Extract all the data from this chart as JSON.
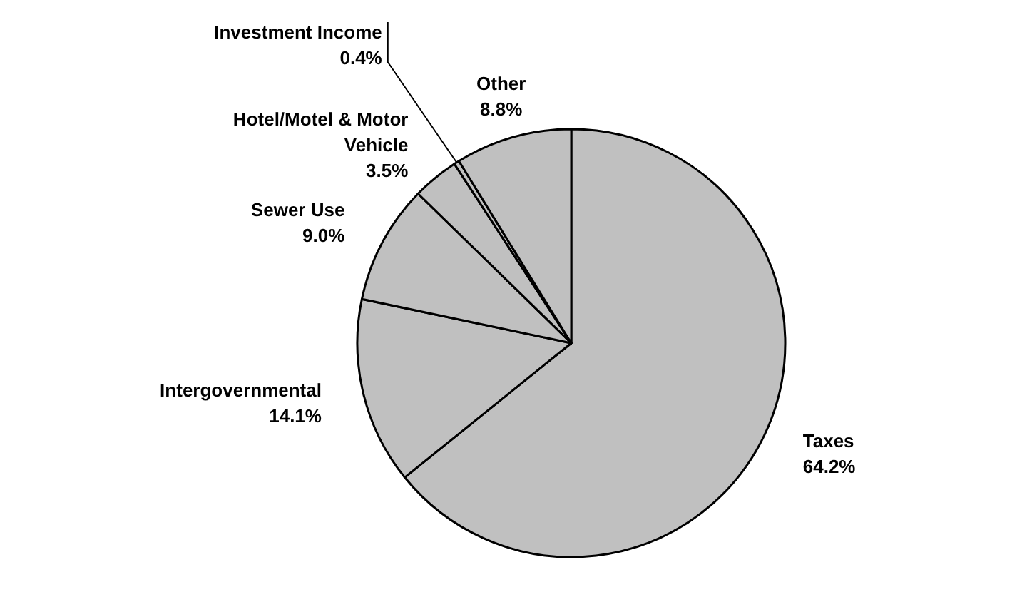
{
  "chart_data": {
    "type": "pie",
    "categories": [
      "Taxes",
      "Intergovernmental",
      "Sewer Use",
      "Hotel/Motel & Motor Vehicle",
      "Investment Income",
      "Other"
    ],
    "values": [
      64.2,
      14.1,
      9.0,
      3.5,
      0.4,
      8.8
    ],
    "colors": [
      "#c0c0c0",
      "#c0c0c0",
      "#c0c0c0",
      "#c0c0c0",
      "#c0c0c0",
      "#c0c0c0"
    ],
    "value_labels": [
      "64.2%",
      "14.1%",
      "9.0%",
      "3.5%",
      "0.4%",
      "8.8%"
    ]
  }
}
